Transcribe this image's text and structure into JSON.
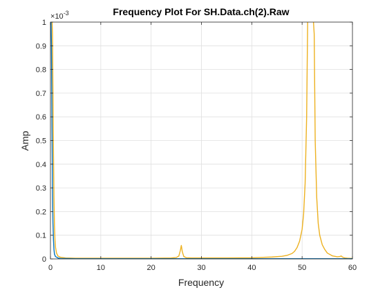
{
  "chart_data": {
    "type": "line",
    "title": "Frequency Plot For SH.Data.ch(2).Raw",
    "xlabel": "Frequency",
    "ylabel": "Amp",
    "xlim": [
      0,
      60
    ],
    "ylim": [
      0,
      0.001
    ],
    "y_exponent": {
      "times": "×",
      "base": "10",
      "power": "-3"
    },
    "grid": true,
    "x_ticks": [
      {
        "value": 0,
        "label": "0"
      },
      {
        "value": 10,
        "label": "10"
      },
      {
        "value": 20,
        "label": "20"
      },
      {
        "value": 30,
        "label": "30"
      },
      {
        "value": 40,
        "label": "40"
      },
      {
        "value": 50,
        "label": "50"
      },
      {
        "value": 60,
        "label": "60"
      }
    ],
    "y_ticks": [
      {
        "value": 0,
        "label": "0"
      },
      {
        "value": 0.0001,
        "label": "0.1"
      },
      {
        "value": 0.0002,
        "label": "0.2"
      },
      {
        "value": 0.0003,
        "label": "0.3"
      },
      {
        "value": 0.0004,
        "label": "0.4"
      },
      {
        "value": 0.0005,
        "label": "0.5"
      },
      {
        "value": 0.0006,
        "label": "0.6"
      },
      {
        "value": 0.0007,
        "label": "0.7"
      },
      {
        "value": 0.0008,
        "label": "0.8"
      },
      {
        "value": 0.0009,
        "label": "0.9"
      },
      {
        "value": 0.001,
        "label": "1"
      }
    ],
    "series": [
      {
        "color": "#EDB120",
        "x": [
          0,
          0.15,
          0.3,
          0.4,
          0.5,
          0.6,
          0.7,
          0.8,
          0.9,
          1.0,
          1.2,
          1.5,
          2.0,
          3.0,
          5.0,
          10.0,
          15.0,
          20.0,
          24.0,
          25.0,
          25.5,
          25.8,
          26.0,
          26.2,
          26.5,
          27.0,
          28.0,
          30.0,
          35.0,
          40.0,
          44.0,
          46.0,
          47.0,
          48.0,
          48.5,
          49.0,
          49.5,
          50.0,
          50.3,
          50.6,
          50.9,
          51.1,
          51.3,
          51.5,
          51.6,
          51.8,
          52.0,
          52.2,
          52.4,
          52.6,
          52.9,
          53.2,
          53.5,
          54.0,
          54.5,
          55.0,
          56.0,
          57.0,
          57.5,
          57.7,
          57.8,
          58.0,
          58.5,
          59.0,
          60.0
        ],
        "y": [
          0.00102,
          0.00102,
          0.00102,
          0.00095,
          0.0007,
          0.00045,
          0.00026,
          0.00014,
          8e-05,
          5e-05,
          2.5e-05,
          1.2e-05,
          7e-06,
          4e-06,
          3e-06,
          3e-06,
          3e-06,
          3e-06,
          4e-06,
          6e-06,
          1.2e-05,
          3.5e-05,
          5.7e-05,
          3e-05,
          1e-05,
          5e-06,
          4e-06,
          4e-06,
          4e-06,
          5e-06,
          8e-06,
          1.1e-05,
          1.5e-05,
          2.3e-05,
          3.2e-05,
          4.8e-05,
          7.5e-05,
          0.000125,
          0.00019,
          0.00032,
          0.0006,
          0.001,
          0.00102,
          0.00102,
          0.00102,
          0.00102,
          0.00102,
          0.00102,
          0.00095,
          0.0005,
          0.00026,
          0.00015,
          0.0001,
          6e-05,
          4e-05,
          2.5e-05,
          1.3e-05,
          9e-06,
          1e-05,
          1.2e-05,
          1.2e-05,
          8e-06,
          4e-06,
          3e-06,
          2e-06
        ]
      },
      {
        "color": "#0072BD",
        "x": [
          0,
          0.1,
          0.2,
          0.3,
          0.4,
          0.5,
          0.6,
          0.7,
          0.8,
          1.0,
          1.5,
          2.0,
          5.0,
          10.0,
          20.0,
          30.0,
          40.0,
          50.0,
          60.0
        ],
        "y": [
          0.00102,
          0.00102,
          0.0009,
          0.0006,
          0.0003,
          0.00015,
          8e-05,
          4e-05,
          2e-05,
          1e-05,
          4e-06,
          2e-06,
          1e-06,
          1e-06,
          1e-06,
          1e-06,
          1e-06,
          1e-06,
          1e-06
        ]
      }
    ]
  }
}
